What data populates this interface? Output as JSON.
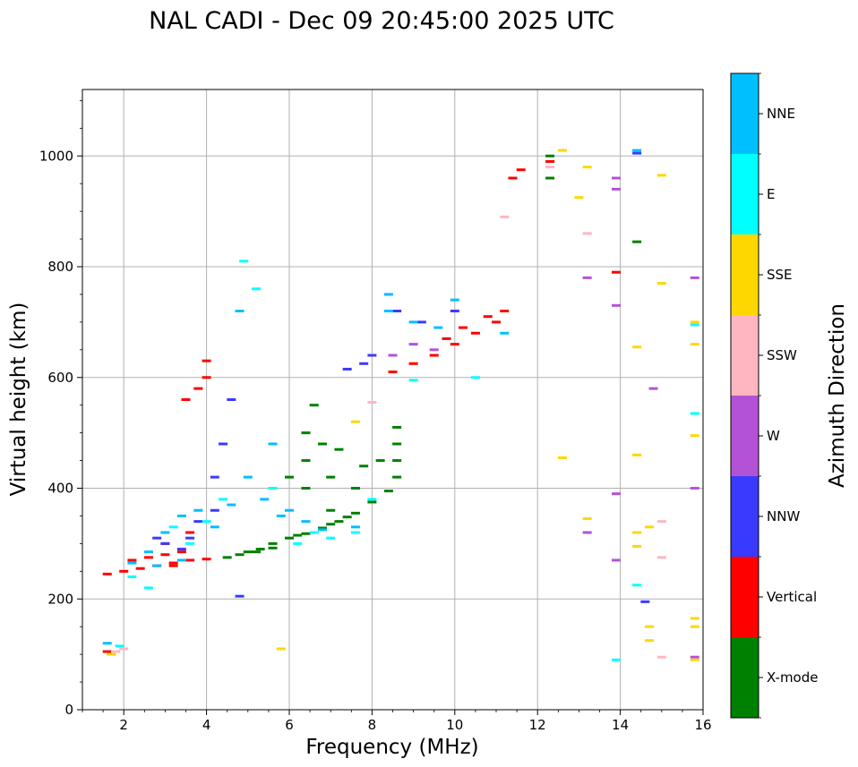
{
  "chart_data": {
    "type": "scatter",
    "title": "NAL CADI - Dec 09 20:45:00 2025 UTC",
    "xlabel": "Frequency (MHz)",
    "ylabel": "Virtual height (km)",
    "xlim": [
      1,
      16
    ],
    "ylim": [
      0,
      1120
    ],
    "xticks": [
      2,
      4,
      6,
      8,
      10,
      12,
      14,
      16
    ],
    "yticks": [
      0,
      200,
      400,
      600,
      800,
      1000
    ],
    "grid": true,
    "colorbar": {
      "label": "Azimuth Direction",
      "placement": "right",
      "categories": [
        {
          "name": "X-mode",
          "color": "#008000"
        },
        {
          "name": "Vertical",
          "color": "#ff0000"
        },
        {
          "name": "NNW",
          "color": "#3a3aff"
        },
        {
          "name": "W",
          "color": "#b452d6"
        },
        {
          "name": "SSW",
          "color": "#ffb6c1"
        },
        {
          "name": "SSE",
          "color": "#ffd700"
        },
        {
          "name": "E",
          "color": "#00ffff"
        },
        {
          "name": "NNE",
          "color": "#00bfff"
        }
      ]
    },
    "series": [
      {
        "name": "X-mode",
        "points": [
          [
            4.5,
            275
          ],
          [
            4.8,
            280
          ],
          [
            5.0,
            285
          ],
          [
            5.3,
            290
          ],
          [
            5.6,
            300
          ],
          [
            6.0,
            310
          ],
          [
            6.4,
            318
          ],
          [
            6.8,
            328
          ],
          [
            7.2,
            340
          ],
          [
            7.6,
            355
          ],
          [
            8.0,
            375
          ],
          [
            8.4,
            395
          ],
          [
            8.6,
            420
          ],
          [
            8.6,
            450
          ],
          [
            8.6,
            480
          ],
          [
            8.6,
            510
          ],
          [
            6.4,
            400
          ],
          [
            6.4,
            450
          ],
          [
            6.4,
            500
          ],
          [
            6.6,
            550
          ],
          [
            7.0,
            420
          ],
          [
            7.2,
            470
          ],
          [
            7.6,
            400
          ],
          [
            7.8,
            440
          ],
          [
            12.3,
            1000
          ],
          [
            12.3,
            960
          ],
          [
            14.4,
            845
          ],
          [
            5.2,
            285
          ],
          [
            5.6,
            292
          ],
          [
            6.2,
            315
          ],
          [
            7.0,
            335
          ],
          [
            7.4,
            348
          ],
          [
            6.0,
            420
          ],
          [
            6.8,
            480
          ],
          [
            8.2,
            450
          ],
          [
            7.0,
            360
          ]
        ]
      },
      {
        "name": "Vertical",
        "points": [
          [
            1.6,
            245
          ],
          [
            2.0,
            250
          ],
          [
            2.4,
            255
          ],
          [
            2.8,
            260
          ],
          [
            3.2,
            265
          ],
          [
            3.6,
            270
          ],
          [
            4.0,
            272
          ],
          [
            2.6,
            275
          ],
          [
            3.0,
            280
          ],
          [
            3.4,
            285
          ],
          [
            4.0,
            600
          ],
          [
            4.0,
            630
          ],
          [
            3.8,
            580
          ],
          [
            3.5,
            560
          ],
          [
            8.5,
            610
          ],
          [
            9.0,
            625
          ],
          [
            9.5,
            640
          ],
          [
            10.0,
            660
          ],
          [
            10.5,
            680
          ],
          [
            11.0,
            700
          ],
          [
            11.2,
            720
          ],
          [
            10.8,
            710
          ],
          [
            10.2,
            690
          ],
          [
            9.8,
            670
          ],
          [
            11.4,
            960
          ],
          [
            11.6,
            975
          ],
          [
            12.3,
            990
          ],
          [
            13.9,
            790
          ],
          [
            1.6,
            105
          ],
          [
            3.0,
            300
          ],
          [
            3.6,
            320
          ],
          [
            4.4,
            480
          ],
          [
            3.2,
            260
          ],
          [
            2.2,
            270
          ]
        ]
      },
      {
        "name": "NNW",
        "points": [
          [
            2.8,
            310
          ],
          [
            3.0,
            300
          ],
          [
            3.4,
            290
          ],
          [
            3.8,
            340
          ],
          [
            4.2,
            360
          ],
          [
            4.2,
            420
          ],
          [
            4.4,
            480
          ],
          [
            4.6,
            560
          ],
          [
            7.4,
            615
          ],
          [
            7.8,
            625
          ],
          [
            8.0,
            640
          ],
          [
            8.6,
            720
          ],
          [
            9.2,
            700
          ],
          [
            10.0,
            720
          ],
          [
            14.4,
            1005
          ],
          [
            14.6,
            195
          ],
          [
            4.8,
            205
          ],
          [
            3.6,
            310
          ]
        ]
      },
      {
        "name": "W",
        "points": [
          [
            8.5,
            640
          ],
          [
            9.0,
            660
          ],
          [
            9.5,
            650
          ],
          [
            13.2,
            320
          ],
          [
            13.2,
            780
          ],
          [
            13.9,
            270
          ],
          [
            13.9,
            390
          ],
          [
            13.9,
            940
          ],
          [
            14.8,
            580
          ],
          [
            15.8,
            780
          ],
          [
            15.8,
            400
          ],
          [
            15.8,
            95
          ],
          [
            13.9,
            960
          ],
          [
            13.9,
            730
          ]
        ]
      },
      {
        "name": "SSW",
        "points": [
          [
            1.8,
            105
          ],
          [
            2.0,
            110
          ],
          [
            12.3,
            980
          ],
          [
            13.2,
            860
          ],
          [
            15.0,
            340
          ],
          [
            15.0,
            275
          ],
          [
            15.0,
            95
          ],
          [
            11.2,
            890
          ],
          [
            8.0,
            555
          ]
        ]
      },
      {
        "name": "SSE",
        "points": [
          [
            1.7,
            100
          ],
          [
            5.8,
            110
          ],
          [
            12.6,
            455
          ],
          [
            12.6,
            1010
          ],
          [
            13.0,
            925
          ],
          [
            13.2,
            345
          ],
          [
            13.2,
            980
          ],
          [
            14.4,
            295
          ],
          [
            14.4,
            460
          ],
          [
            14.4,
            655
          ],
          [
            14.4,
            320
          ],
          [
            14.7,
            330
          ],
          [
            14.7,
            150
          ],
          [
            14.7,
            125
          ],
          [
            15.0,
            770
          ],
          [
            15.0,
            965
          ],
          [
            15.8,
            660
          ],
          [
            15.8,
            700
          ],
          [
            15.8,
            495
          ],
          [
            15.8,
            165
          ],
          [
            15.8,
            150
          ],
          [
            15.8,
            90
          ],
          [
            7.6,
            520
          ]
        ]
      },
      {
        "name": "E",
        "points": [
          [
            1.9,
            115
          ],
          [
            2.2,
            240
          ],
          [
            2.6,
            220
          ],
          [
            3.2,
            330
          ],
          [
            3.6,
            300
          ],
          [
            4.0,
            340
          ],
          [
            4.4,
            380
          ],
          [
            5.6,
            400
          ],
          [
            6.6,
            320
          ],
          [
            7.0,
            310
          ],
          [
            8.0,
            380
          ],
          [
            9.0,
            595
          ],
          [
            10.5,
            600
          ],
          [
            13.9,
            90
          ],
          [
            14.4,
            225
          ],
          [
            15.8,
            535
          ],
          [
            15.8,
            695
          ],
          [
            4.9,
            810
          ],
          [
            5.2,
            760
          ],
          [
            6.2,
            300
          ],
          [
            7.6,
            320
          ]
        ]
      },
      {
        "name": "NNE",
        "points": [
          [
            2.2,
            265
          ],
          [
            2.6,
            285
          ],
          [
            3.0,
            320
          ],
          [
            3.4,
            350
          ],
          [
            3.8,
            360
          ],
          [
            4.2,
            330
          ],
          [
            4.6,
            370
          ],
          [
            5.0,
            420
          ],
          [
            5.4,
            380
          ],
          [
            5.8,
            350
          ],
          [
            6.4,
            340
          ],
          [
            6.8,
            325
          ],
          [
            7.6,
            330
          ],
          [
            8.4,
            750
          ],
          [
            8.4,
            720
          ],
          [
            9.0,
            700
          ],
          [
            9.6,
            690
          ],
          [
            10.0,
            740
          ],
          [
            11.2,
            680
          ],
          [
            14.4,
            1010
          ],
          [
            1.6,
            120
          ],
          [
            4.8,
            720
          ],
          [
            5.6,
            480
          ],
          [
            6.0,
            360
          ],
          [
            2.8,
            260
          ],
          [
            3.4,
            270
          ]
        ]
      }
    ]
  }
}
